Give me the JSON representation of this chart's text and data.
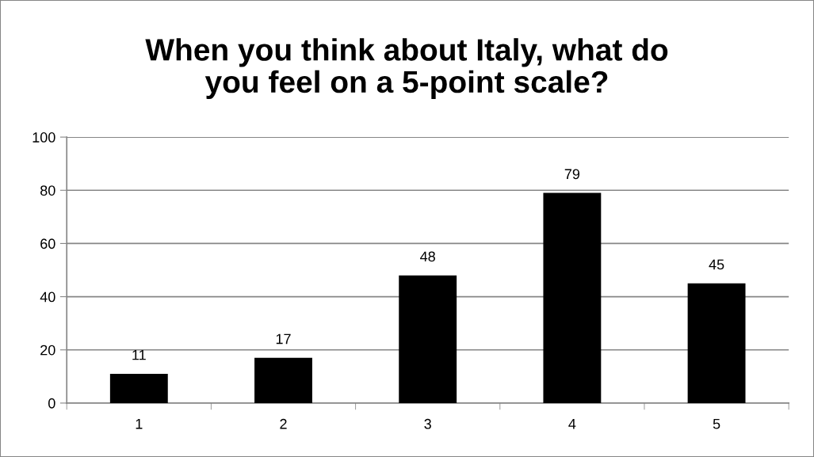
{
  "chart_data": {
    "type": "bar",
    "title": "When you think about Italy, what do you feel on a 5-point scale?",
    "categories": [
      "1",
      "2",
      "3",
      "4",
      "5"
    ],
    "series": [
      {
        "color": "#000000",
        "values": [
          11,
          17,
          48,
          79,
          45
        ]
      }
    ],
    "ylim": [
      0,
      100
    ],
    "yticks": [
      0,
      20,
      40,
      60,
      80,
      100
    ],
    "grid": "y",
    "data_labels": true,
    "legend": false
  }
}
